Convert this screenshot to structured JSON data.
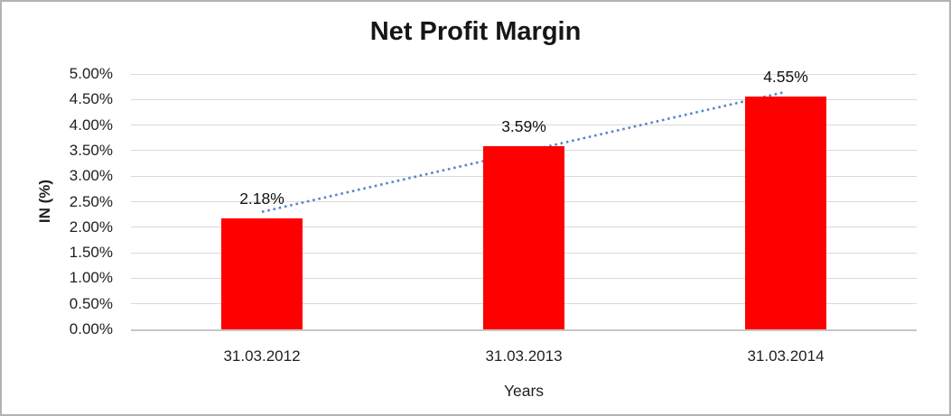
{
  "chart_data": {
    "type": "bar",
    "title": "Net Profit Margin",
    "xlabel": "Years",
    "ylabel": "IN (%)",
    "categories": [
      "31.03.2012",
      "31.03.2013",
      "31.03.2014"
    ],
    "values": [
      2.18,
      3.59,
      4.55
    ],
    "data_labels": [
      "2.18%",
      "3.59%",
      "4.55%"
    ],
    "ylim": [
      0,
      5
    ],
    "ytick_step": 0.5,
    "ytick_labels": [
      "0.00%",
      "0.50%",
      "1.00%",
      "1.50%",
      "2.00%",
      "2.50%",
      "3.00%",
      "3.50%",
      "4.00%",
      "4.50%",
      "5.00%"
    ],
    "grid": true,
    "legend": "none",
    "bar_color": "#FF0000",
    "trendline": {
      "style": "dotted",
      "color": "#5588C7",
      "start_pct": 2.3,
      "end_pct": 4.65
    },
    "colors": {
      "gridline": "#D9D9D9",
      "axis_line": "#C6C6C6",
      "text": "#1F1F1F",
      "frame_border": "#B3B3B3",
      "background": "#FFFFFF"
    }
  }
}
